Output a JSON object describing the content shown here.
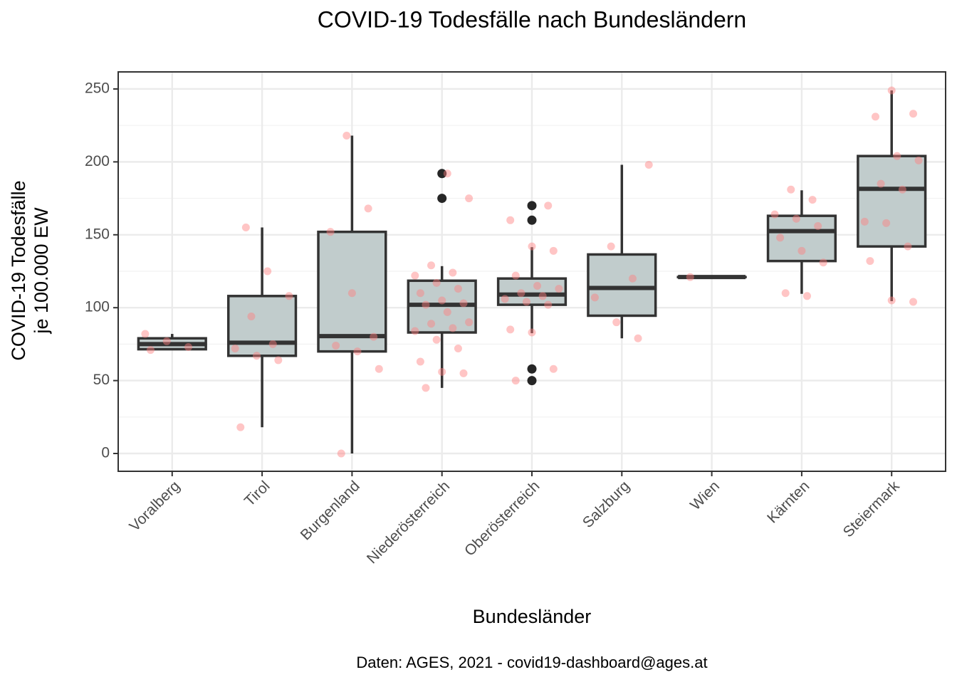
{
  "chart_data": {
    "type": "boxplot",
    "title": "COVID-19 Todesfälle nach Bundesländern",
    "x_label": "Bundesländer",
    "y_label": [
      "COVID-19 Todesfälle",
      "je 100.000 EW"
    ],
    "caption": "Daten: AGES, 2021 - covid19-dashboard@ages.at",
    "categories": [
      "Voralberg",
      "Tirol",
      "Burgenland",
      "Niederösterreich",
      "Oberösterreich",
      "Salzburg",
      "Wien",
      "Kärnten",
      "Steiermark"
    ],
    "boxes": [
      {
        "min": 71,
        "q1": 71.5,
        "median": 75,
        "q3": 79,
        "max": 82,
        "outliers": []
      },
      {
        "min": 18,
        "q1": 67,
        "median": 76,
        "q3": 108,
        "max": 155,
        "outliers": []
      },
      {
        "min": 0,
        "q1": 70,
        "median": 80.5,
        "q3": 152,
        "max": 218,
        "outliers": []
      },
      {
        "min": 45,
        "q1": 83,
        "median": 102,
        "q3": 118.5,
        "max": 128.5,
        "outliers": [
          192,
          175
        ]
      },
      {
        "min": 82.5,
        "q1": 102,
        "median": 109,
        "q3": 120,
        "max": 141.5,
        "outliers": [
          170,
          160,
          58,
          50
        ]
      },
      {
        "min": 79,
        "q1": 94.5,
        "median": 113.5,
        "q3": 136.5,
        "max": 198,
        "outliers": []
      },
      {
        "min": 121,
        "q1": 121,
        "median": 121,
        "q3": 121,
        "max": 121,
        "outliers": []
      },
      {
        "min": 109.5,
        "q1": 132,
        "median": 152.5,
        "q3": 163,
        "max": 180.5,
        "outliers": []
      },
      {
        "min": 104.5,
        "q1": 142,
        "median": 181.5,
        "q3": 204,
        "max": 249,
        "outliers": []
      }
    ],
    "points": [
      [
        82,
        77,
        73,
        71
      ],
      [
        155,
        125,
        108,
        94,
        75,
        72,
        67,
        64,
        18
      ],
      [
        218,
        168,
        152,
        110,
        80,
        74,
        70,
        58,
        0
      ],
      [
        192,
        175,
        129,
        124,
        122,
        117,
        113,
        110,
        105,
        103,
        102,
        97,
        90,
        89,
        86,
        84,
        78,
        72,
        63,
        56,
        55,
        45
      ],
      [
        170,
        160,
        142,
        139,
        122,
        115,
        113,
        110,
        108,
        106,
        104,
        102,
        85,
        83,
        58,
        50
      ],
      [
        198,
        142,
        120,
        107,
        90,
        79
      ],
      [
        121
      ],
      [
        181,
        174,
        164,
        161,
        156,
        148,
        139,
        131,
        110,
        108
      ],
      [
        249,
        233,
        231,
        204,
        201,
        185,
        181,
        159,
        158,
        142,
        132,
        105,
        104
      ]
    ],
    "box_color": "#c1cccc",
    "point_color": "#ff7f7f",
    "outlier_color": "#262626",
    "ylim": [
      -12.2,
      261.7
    ],
    "yticks": [
      0,
      50,
      100,
      150,
      200,
      250
    ],
    "yminor": [
      25,
      75,
      125,
      175,
      225
    ],
    "grid": true
  }
}
